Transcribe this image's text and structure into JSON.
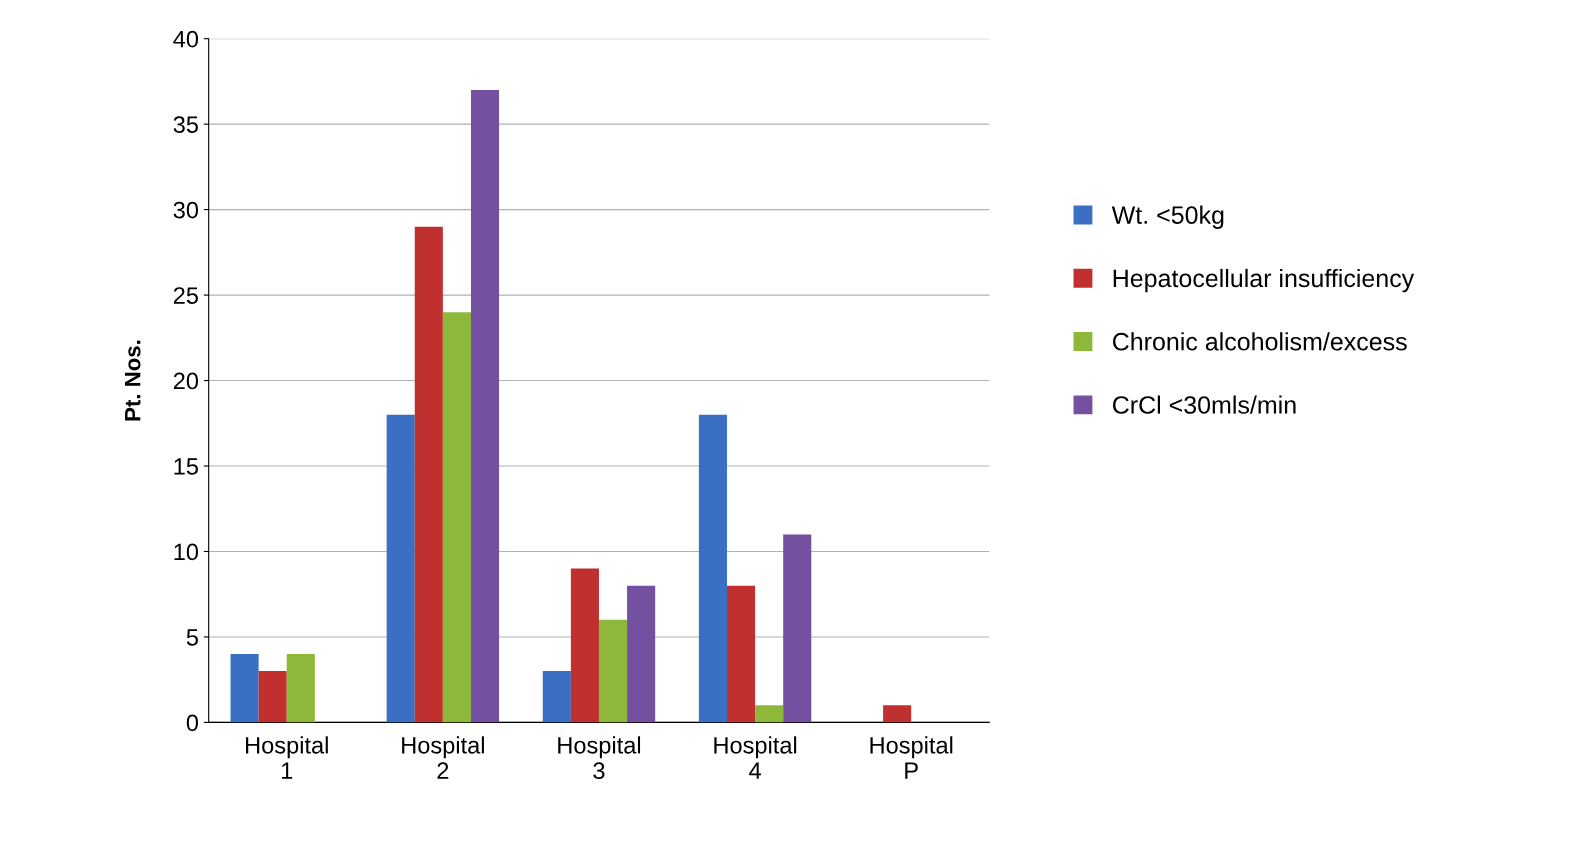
{
  "chart_data": {
    "type": "bar",
    "ylabel": "Pt. Nos.",
    "categories": [
      "Hospital 1",
      "Hospital 2",
      "Hospital 3",
      "Hospital 4",
      "Hospital P"
    ],
    "series": [
      {
        "name": "Wt. <50kg",
        "color": "#3a6fc4",
        "values": [
          4,
          18,
          3,
          18,
          0
        ]
      },
      {
        "name": "Hepatocellular insufficiency",
        "color": "#c0302e",
        "values": [
          3,
          29,
          9,
          8,
          1
        ]
      },
      {
        "name": "Chronic alcoholism/excess",
        "color": "#8db83a",
        "values": [
          4,
          24,
          6,
          1,
          0
        ]
      },
      {
        "name": "CrCl <30mls/min",
        "color": "#7451a0",
        "values": [
          0,
          37,
          8,
          11,
          0
        ]
      }
    ],
    "ylim": [
      0,
      40
    ],
    "yticks": [
      0,
      5,
      10,
      15,
      20,
      25,
      30,
      35,
      40
    ],
    "grid": "y",
    "legend": "right"
  }
}
